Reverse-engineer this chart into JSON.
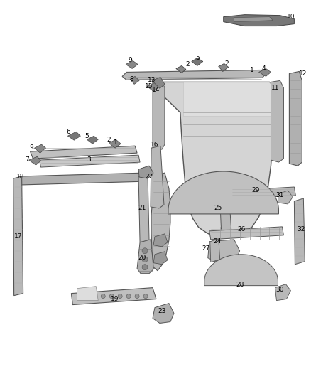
{
  "background_color": "#ffffff",
  "fig_width": 4.38,
  "fig_height": 5.33,
  "dpi": 100
}
